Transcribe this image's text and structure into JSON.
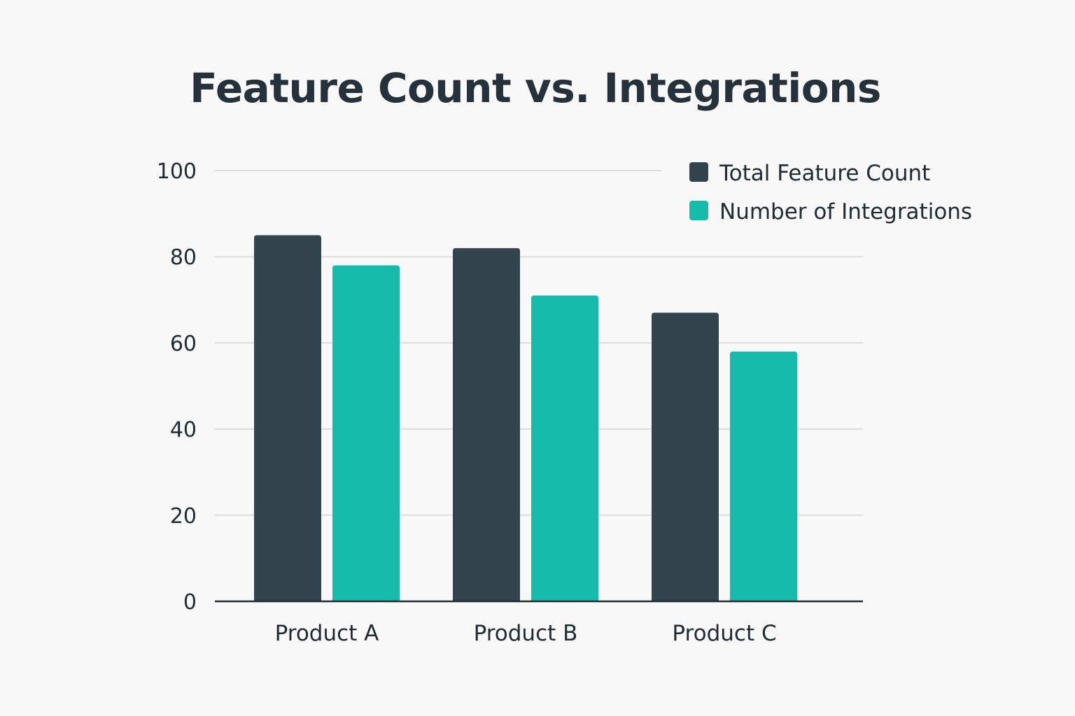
{
  "chart_data": {
    "type": "bar",
    "title": "Feature Count vs. Integrations",
    "xlabel": "",
    "ylabel": "",
    "ylim": [
      0,
      100
    ],
    "yticks": [
      0,
      20,
      40,
      60,
      80,
      100
    ],
    "grid": true,
    "legend_position": "top-right",
    "categories": [
      "Product A",
      "Product B",
      "Product C"
    ],
    "series": [
      {
        "name": "Total Feature Count",
        "color": "#33444f",
        "values": [
          85,
          82,
          67
        ]
      },
      {
        "name": "Number of Integrations",
        "color": "#17bba9",
        "values": [
          78,
          71,
          58
        ]
      }
    ]
  }
}
